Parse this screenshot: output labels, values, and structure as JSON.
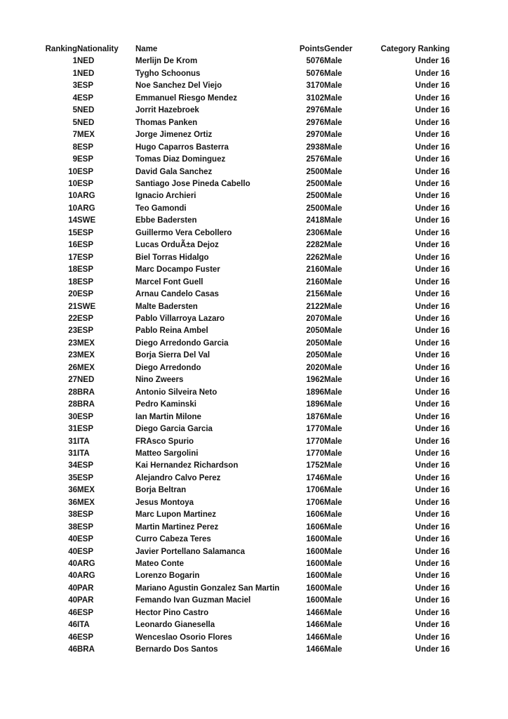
{
  "page": {
    "background_color": "#ffffff",
    "text_color": "#141414"
  },
  "table": {
    "columns": [
      {
        "key": "ranking",
        "label": "Ranking",
        "align": "right"
      },
      {
        "key": "nationality",
        "label": "Nationality",
        "align": "left"
      },
      {
        "key": "name",
        "label": "Name",
        "align": "left"
      },
      {
        "key": "points",
        "label": "Points",
        "align": "right"
      },
      {
        "key": "gender",
        "label": "Gender",
        "align": "left"
      },
      {
        "key": "category",
        "label": "Category Ranking",
        "align": "right"
      }
    ],
    "rows": [
      [
        "1",
        "NED",
        "Merlijn De Krom",
        "5076",
        "Male",
        "Under 16"
      ],
      [
        "1",
        "NED",
        "Tygho Schoonus",
        "5076",
        "Male",
        "Under 16"
      ],
      [
        "3",
        "ESP",
        "Noe Sanchez Del Viejo",
        "3170",
        "Male",
        "Under 16"
      ],
      [
        "4",
        "ESP",
        "Emmanuel Riesgo Mendez",
        "3102",
        "Male",
        "Under 16"
      ],
      [
        "5",
        "NED",
        "Jorrit Hazebroek",
        "2976",
        "Male",
        "Under 16"
      ],
      [
        "5",
        "NED",
        "Thomas Panken",
        "2976",
        "Male",
        "Under 16"
      ],
      [
        "7",
        "MEX",
        "Jorge Jimenez Ortiz",
        "2970",
        "Male",
        "Under 16"
      ],
      [
        "8",
        "ESP",
        "Hugo Caparros Basterra",
        "2938",
        "Male",
        "Under 16"
      ],
      [
        "9",
        "ESP",
        "Tomas Diaz Dominguez",
        "2576",
        "Male",
        "Under 16"
      ],
      [
        "10",
        "ESP",
        "David Gala Sanchez",
        "2500",
        "Male",
        "Under 16"
      ],
      [
        "10",
        "ESP",
        "Santiago Jose Pineda Cabello",
        "2500",
        "Male",
        "Under 16"
      ],
      [
        "10",
        "ARG",
        "Ignacio Archieri",
        "2500",
        "Male",
        "Under 16"
      ],
      [
        "10",
        "ARG",
        "Teo Gamondi",
        "2500",
        "Male",
        "Under 16"
      ],
      [
        "14",
        "SWE",
        "Ebbe Badersten",
        "2418",
        "Male",
        "Under 16"
      ],
      [
        "15",
        "ESP",
        "Guillermo Vera Cebollero",
        "2306",
        "Male",
        "Under 16"
      ],
      [
        "16",
        "ESP",
        "Lucas OrduÃ±a Dejoz",
        "2282",
        "Male",
        "Under 16"
      ],
      [
        "17",
        "ESP",
        "Biel Torras Hidalgo",
        "2262",
        "Male",
        "Under 16"
      ],
      [
        "18",
        "ESP",
        "Marc Docampo Fuster",
        "2160",
        "Male",
        "Under 16"
      ],
      [
        "18",
        "ESP",
        "Marcel Font Guell",
        "2160",
        "Male",
        "Under 16"
      ],
      [
        "20",
        "ESP",
        "Arnau Candelo Casas",
        "2156",
        "Male",
        "Under 16"
      ],
      [
        "21",
        "SWE",
        "Malte Badersten",
        "2122",
        "Male",
        "Under 16"
      ],
      [
        "22",
        "ESP",
        "Pablo Villarroya Lazaro",
        "2070",
        "Male",
        "Under 16"
      ],
      [
        "23",
        "ESP",
        "Pablo Reina Ambel",
        "2050",
        "Male",
        "Under 16"
      ],
      [
        "23",
        "MEX",
        "Diego Arredondo Garcia",
        "2050",
        "Male",
        "Under 16"
      ],
      [
        "23",
        "MEX",
        "Borja Sierra Del Val",
        "2050",
        "Male",
        "Under 16"
      ],
      [
        "26",
        "MEX",
        "Diego Arredondo",
        "2020",
        "Male",
        "Under 16"
      ],
      [
        "27",
        "NED",
        "Nino Zweers",
        "1962",
        "Male",
        "Under 16"
      ],
      [
        "28",
        "BRA",
        "Antonio Silveira Neto",
        "1896",
        "Male",
        "Under 16"
      ],
      [
        "28",
        "BRA",
        "Pedro Kaminski",
        "1896",
        "Male",
        "Under 16"
      ],
      [
        "30",
        "ESP",
        "Ian Martin Milone",
        "1876",
        "Male",
        "Under 16"
      ],
      [
        "31",
        "ESP",
        "Diego Garcia Garcia",
        "1770",
        "Male",
        "Under 16"
      ],
      [
        "31",
        "ITA",
        "FRAsco Spurio",
        "1770",
        "Male",
        "Under 16"
      ],
      [
        "31",
        "ITA",
        "Matteo Sargolini",
        "1770",
        "Male",
        "Under 16"
      ],
      [
        "34",
        "ESP",
        "Kai Hernandez Richardson",
        "1752",
        "Male",
        "Under 16"
      ],
      [
        "35",
        "ESP",
        "Alejandro Calvo Perez",
        "1746",
        "Male",
        "Under 16"
      ],
      [
        "36",
        "MEX",
        "Borja Beltran",
        "1706",
        "Male",
        "Under 16"
      ],
      [
        "36",
        "MEX",
        "Jesus Montoya",
        "1706",
        "Male",
        "Under 16"
      ],
      [
        "38",
        "ESP",
        "Marc Lupon Martinez",
        "1606",
        "Male",
        "Under 16"
      ],
      [
        "38",
        "ESP",
        "Martin Martinez Perez",
        "1606",
        "Male",
        "Under 16"
      ],
      [
        "40",
        "ESP",
        "Curro Cabeza Teres",
        "1600",
        "Male",
        "Under 16"
      ],
      [
        "40",
        "ESP",
        "Javier Portellano Salamanca",
        "1600",
        "Male",
        "Under 16"
      ],
      [
        "40",
        "ARG",
        "Mateo Conte",
        "1600",
        "Male",
        "Under 16"
      ],
      [
        "40",
        "ARG",
        "Lorenzo Bogarin",
        "1600",
        "Male",
        "Under 16"
      ],
      [
        "40",
        "PAR",
        "Mariano Agustin Gonzalez San Martin",
        "1600",
        "Male",
        "Under 16"
      ],
      [
        "40",
        "PAR",
        "Femando Ivan Guzman Maciel",
        "1600",
        "Male",
        "Under 16"
      ],
      [
        "46",
        "ESP",
        "Hector Pino Castro",
        "1466",
        "Male",
        "Under 16"
      ],
      [
        "46",
        "ITA",
        "Leonardo Gianesella",
        "1466",
        "Male",
        "Under 16"
      ],
      [
        "46",
        "ESP",
        "Wenceslao Osorio Flores",
        "1466",
        "Male",
        "Under 16"
      ],
      [
        "46",
        "BRA",
        "Bernardo Dos Santos",
        "1466",
        "Male",
        "Under 16"
      ]
    ]
  }
}
